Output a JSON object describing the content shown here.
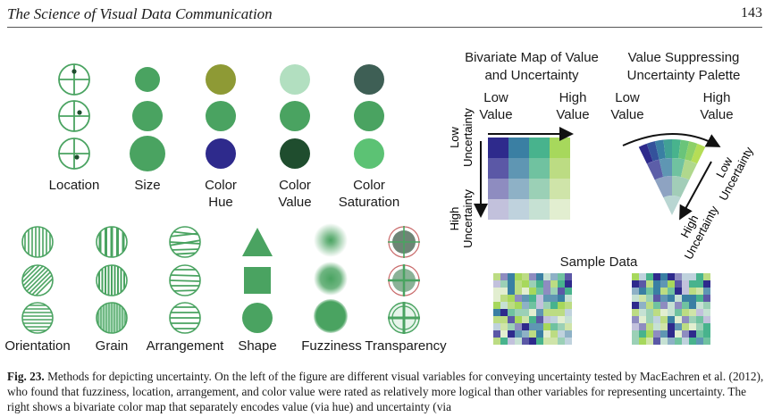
{
  "header": {
    "title": "The Science of Visual Data Communication",
    "page_number": "143"
  },
  "variables": {
    "location": "Location",
    "size": "Size",
    "color_hue": [
      "Color",
      "Hue"
    ],
    "color_value": [
      "Color",
      "Value"
    ],
    "color_saturation": [
      "Color",
      "Saturation"
    ],
    "orientation": "Orientation",
    "grain": "Grain",
    "arrangement": "Arrangement",
    "shape": "Shape",
    "fuzziness": "Fuzziness",
    "transparency": "Transparency"
  },
  "bivariate": {
    "title": [
      "Bivariate Map of Value",
      "and Uncertainty"
    ],
    "low_value": [
      "Low",
      "Value"
    ],
    "high_value": [
      "High",
      "Value"
    ],
    "low_uncertainty": [
      "Low",
      "Uncertainty"
    ],
    "high_uncertainty": [
      "High",
      "Uncertainty"
    ]
  },
  "vsup": {
    "title": [
      "Value Suppressing",
      "Uncertainty Palette"
    ],
    "low_value": [
      "Low",
      "Value"
    ],
    "high_value": [
      "High",
      "Value"
    ],
    "low_uncertainty": [
      "Low",
      "Uncertainty"
    ],
    "high_uncertainty": [
      "High",
      "Uncertainty"
    ]
  },
  "sample": {
    "title": "Sample Data"
  },
  "caption": {
    "label": "Fig. 23.",
    "text": "Methods for depicting uncertainty. On the left of the figure are different visual variables for conveying uncertainty tested by MacEachren et al. (2012), who found that fuzziness, location, arrangement, and color value were rated as relatively more logical than other variables for representing uncertainty. The right shows a bivariate color map that separately encodes value (via hue) and uncertainty (via"
  },
  "colors": {
    "green": "#4aa361",
    "dark_green": "#1f4d2e",
    "olive": "#8e9a35",
    "navy": "#2e2a8c",
    "pale_green": "#b2dfc0",
    "slate": "#3e5f55",
    "bright_green": "#5cc274"
  }
}
